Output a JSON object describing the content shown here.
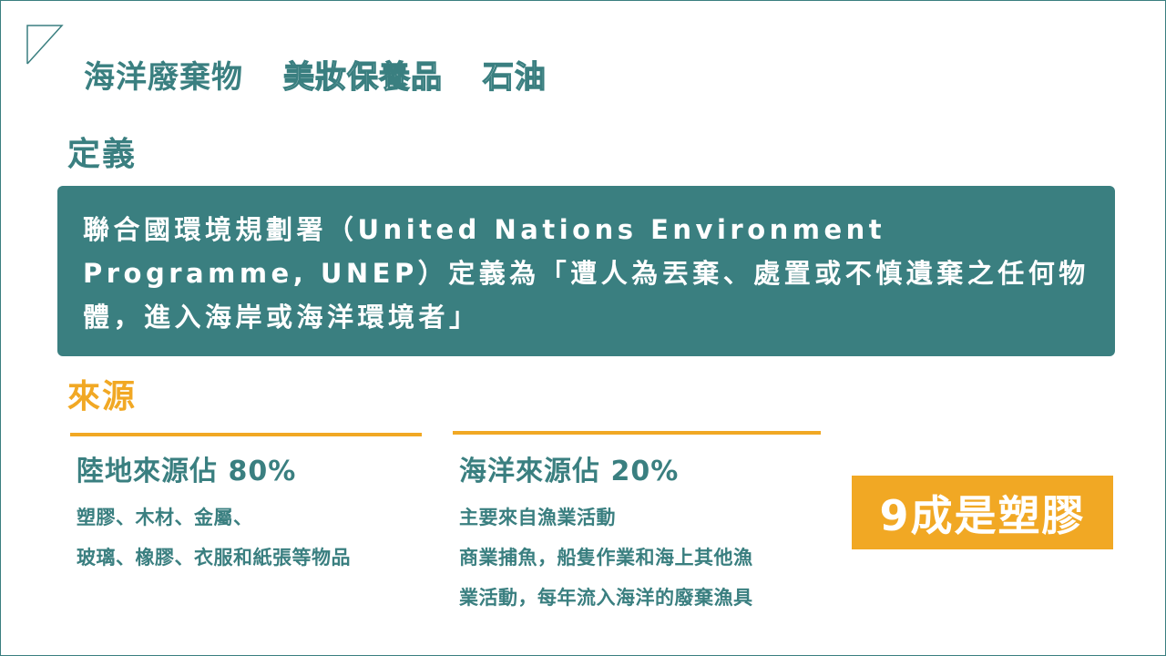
{
  "tabs": [
    {
      "label": "海洋廢棄物",
      "active": true
    },
    {
      "label": "美妝保養品",
      "active": false
    },
    {
      "label": "石油",
      "active": false
    }
  ],
  "definition": {
    "heading": "定義",
    "text": "聯合國環境規劃署（United Nations Environment Programme, UNEP）定義為「遭人為丟棄、處置或不慎遺棄之任何物體，進入海岸或海洋環境者」"
  },
  "sources": {
    "heading": "來源",
    "land": {
      "title": "陸地來源佔 80%",
      "lines": [
        "塑膠、木材、金屬、",
        "玻璃、橡膠、衣服和紙張等物品"
      ]
    },
    "sea": {
      "title": "海洋來源佔 20%",
      "lines": [
        "主要來自漁業活動",
        "商業捕魚，船隻作業和海上其他漁",
        "業活動，每年流入海洋的廢棄漁具"
      ]
    }
  },
  "badge": {
    "text": "9成是塑膠"
  },
  "colors": {
    "teal": "#3a7f80",
    "orange": "#f1a824"
  }
}
